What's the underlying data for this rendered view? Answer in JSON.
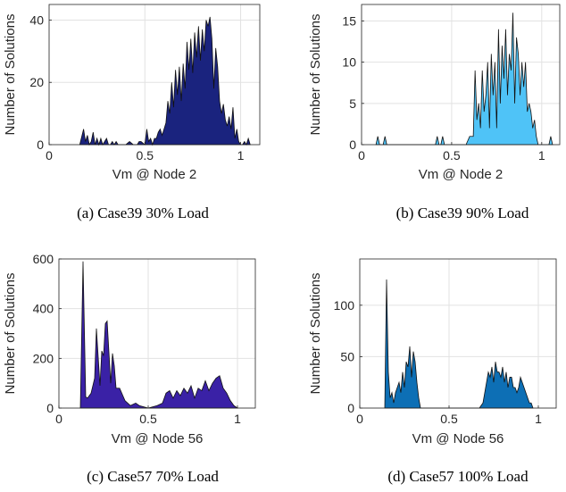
{
  "chart_data": [
    {
      "type": "area",
      "id": "a",
      "caption": "(a)  Case39  30% Load",
      "xlabel": "Vm @ Node 2",
      "ylabel": "Number of Solutions",
      "xlim": [
        0,
        1.1
      ],
      "ylim": [
        0,
        45
      ],
      "xticks": [
        0,
        0.5,
        1
      ],
      "xtick_labels": [
        "0",
        "0.5",
        "1"
      ],
      "yticks": [
        0,
        20,
        40
      ],
      "ytick_labels": [
        "0",
        "20",
        "40"
      ],
      "grid": true,
      "color": "#1a237e",
      "x": [
        0.16,
        0.18,
        0.19,
        0.2,
        0.21,
        0.22,
        0.23,
        0.24,
        0.25,
        0.26,
        0.27,
        0.28,
        0.29,
        0.3,
        0.31,
        0.32,
        0.33,
        0.34,
        0.35,
        0.36,
        0.37,
        0.4,
        0.42,
        0.44,
        0.46,
        0.47,
        0.48,
        0.5,
        0.51,
        0.52,
        0.53,
        0.54,
        0.55,
        0.56,
        0.57,
        0.58,
        0.59,
        0.6,
        0.61,
        0.62,
        0.63,
        0.64,
        0.65,
        0.66,
        0.67,
        0.68,
        0.69,
        0.7,
        0.71,
        0.72,
        0.73,
        0.74,
        0.75,
        0.76,
        0.77,
        0.78,
        0.79,
        0.8,
        0.81,
        0.82,
        0.83,
        0.84,
        0.85,
        0.86,
        0.87,
        0.88,
        0.89,
        0.9,
        0.91,
        0.92,
        0.93,
        0.94,
        0.95,
        0.96,
        0.97,
        0.98,
        0.99,
        1.0,
        1.01,
        1.02,
        1.03,
        1.04,
        1.05
      ],
      "y": [
        0,
        5,
        1,
        3,
        0,
        1,
        4,
        0,
        2,
        0,
        2,
        0,
        1,
        2,
        0,
        0,
        1,
        0,
        1,
        0,
        0,
        0,
        1,
        0,
        0,
        1,
        1,
        0,
        5,
        1,
        2,
        0,
        2,
        2,
        4,
        5,
        3,
        5,
        7,
        14,
        10,
        20,
        12,
        24,
        16,
        25,
        14,
        26,
        18,
        33,
        24,
        34,
        23,
        36,
        28,
        38,
        27,
        37,
        30,
        40,
        38,
        41,
        34,
        18,
        31,
        25,
        14,
        10,
        13,
        8,
        6,
        9,
        5,
        12,
        2,
        5,
        1,
        0,
        0,
        1,
        0,
        2,
        0
      ]
    },
    {
      "type": "area",
      "id": "b",
      "caption": "(b)  Case39  90% Load",
      "xlabel": "Vm @ Node 2",
      "ylabel": "Number of Solutions",
      "xlim": [
        0,
        1.1
      ],
      "ylim": [
        0,
        17
      ],
      "xticks": [
        0,
        0.5,
        1
      ],
      "xtick_labels": [
        "0",
        "0.5",
        "1"
      ],
      "yticks": [
        0,
        5,
        10,
        15
      ],
      "ytick_labels": [
        "0",
        "5",
        "10",
        "15"
      ],
      "grid": true,
      "color": "#4fc3f7",
      "x": [
        0.08,
        0.09,
        0.1,
        0.12,
        0.13,
        0.14,
        0.41,
        0.42,
        0.43,
        0.44,
        0.45,
        0.46,
        0.58,
        0.6,
        0.61,
        0.62,
        0.63,
        0.64,
        0.65,
        0.66,
        0.67,
        0.68,
        0.69,
        0.7,
        0.71,
        0.72,
        0.73,
        0.74,
        0.75,
        0.76,
        0.77,
        0.78,
        0.79,
        0.8,
        0.81,
        0.82,
        0.83,
        0.84,
        0.85,
        0.86,
        0.87,
        0.88,
        0.89,
        0.9,
        0.91,
        0.92,
        0.93,
        0.94,
        0.95,
        0.96,
        0.97,
        0.98,
        1.04,
        1.05,
        1.06
      ],
      "y": [
        0,
        1,
        0,
        0,
        1,
        0,
        0,
        1,
        0,
        0,
        1,
        0,
        0,
        1,
        1,
        1,
        9,
        3,
        5,
        2,
        9,
        4,
        6,
        10,
        2,
        11,
        6,
        10,
        2,
        14,
        5,
        12,
        8,
        14,
        6,
        11,
        9,
        16,
        5,
        13,
        11,
        6,
        10,
        7,
        10,
        4,
        5,
        4,
        2,
        3,
        1,
        0,
        0,
        1,
        0
      ]
    },
    {
      "type": "area",
      "id": "c",
      "caption": "(c)  Case57  70% Load",
      "xlabel": "Vm @ Node 56",
      "ylabel": "Number of Solutions",
      "xlim": [
        0,
        1.1
      ],
      "ylim": [
        0,
        600
      ],
      "xticks": [
        0,
        0.5,
        1
      ],
      "xtick_labels": [
        "0",
        "0.5",
        "1"
      ],
      "yticks": [
        0,
        200,
        400,
        600
      ],
      "ytick_labels": [
        "0",
        "200",
        "400",
        "600"
      ],
      "grid": true,
      "color": "#3a21a6",
      "x": [
        0.12,
        0.135,
        0.15,
        0.16,
        0.18,
        0.2,
        0.21,
        0.23,
        0.24,
        0.25,
        0.26,
        0.27,
        0.29,
        0.3,
        0.31,
        0.32,
        0.34,
        0.37,
        0.4,
        0.43,
        0.45,
        0.5,
        0.55,
        0.58,
        0.6,
        0.62,
        0.64,
        0.66,
        0.68,
        0.7,
        0.72,
        0.74,
        0.76,
        0.78,
        0.8,
        0.82,
        0.84,
        0.86,
        0.88,
        0.9,
        0.92,
        0.94,
        0.96,
        0.98,
        0.99,
        1.0
      ],
      "y": [
        0,
        590,
        45,
        40,
        60,
        120,
        320,
        90,
        230,
        210,
        340,
        350,
        100,
        220,
        170,
        80,
        80,
        30,
        10,
        20,
        10,
        0,
        10,
        20,
        60,
        70,
        40,
        70,
        50,
        80,
        60,
        90,
        40,
        80,
        70,
        110,
        70,
        100,
        120,
        130,
        80,
        60,
        30,
        10,
        5,
        0
      ]
    },
    {
      "type": "area",
      "id": "d",
      "caption": "(d)  Case57  100% Load",
      "xlabel": "Vm @ Node 56",
      "ylabel": "Number of Solutions",
      "xlim": [
        0,
        1.1
      ],
      "ylim": [
        0,
        145
      ],
      "xticks": [
        0,
        0.5,
        1
      ],
      "xtick_labels": [
        "0",
        "0.5",
        "1"
      ],
      "yticks": [
        0,
        50,
        100
      ],
      "ytick_labels": [
        "0",
        "50",
        "100"
      ],
      "grid": true,
      "color": "#0d6fb5",
      "x": [
        0.14,
        0.15,
        0.16,
        0.17,
        0.18,
        0.19,
        0.2,
        0.21,
        0.22,
        0.23,
        0.24,
        0.25,
        0.26,
        0.27,
        0.28,
        0.29,
        0.3,
        0.31,
        0.32,
        0.33,
        0.34,
        0.67,
        0.69,
        0.7,
        0.71,
        0.72,
        0.73,
        0.74,
        0.75,
        0.76,
        0.77,
        0.78,
        0.79,
        0.8,
        0.81,
        0.82,
        0.83,
        0.84,
        0.85,
        0.86,
        0.87,
        0.88,
        0.89,
        0.9,
        0.91,
        0.92,
        0.93,
        0.94,
        0.95,
        0.96,
        0.97
      ],
      "y": [
        0,
        125,
        35,
        10,
        15,
        5,
        15,
        20,
        25,
        15,
        35,
        20,
        45,
        40,
        60,
        30,
        55,
        45,
        25,
        10,
        0,
        0,
        5,
        15,
        25,
        35,
        30,
        40,
        25,
        45,
        35,
        35,
        30,
        40,
        25,
        35,
        20,
        30,
        30,
        20,
        20,
        15,
        20,
        30,
        25,
        20,
        15,
        10,
        5,
        5,
        0
      ]
    }
  ]
}
